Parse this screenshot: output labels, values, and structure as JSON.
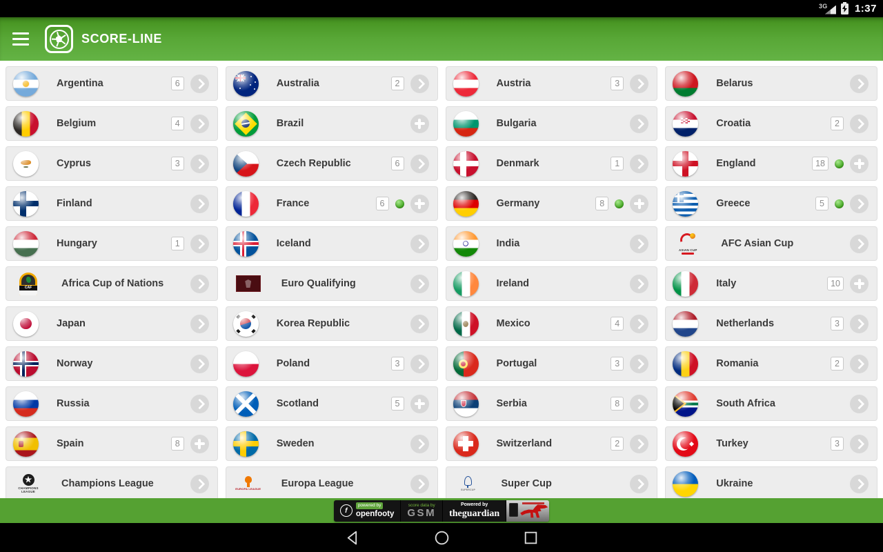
{
  "status_bar": {
    "time": "1:37",
    "network": "3G"
  },
  "header": {
    "title": "SCORE-LINE"
  },
  "colors": {
    "header_green": "#58A736",
    "ad_strip_green": "#55A132",
    "live_dot_green": "#3DA31C",
    "card_bg": "#EDEDED"
  },
  "ad_bar": {
    "openfooty_logo_letter": "f",
    "openfooty_label": "powered by",
    "openfooty_name": "openfooty",
    "gsm_label": "score data by",
    "gsm_name": "GSM",
    "guardian_label": "Powered by",
    "guardian_name": "theguardian"
  },
  "items": [
    {
      "name": "Argentina",
      "badge": "6",
      "action": "chevron",
      "flag": {
        "t": "h",
        "c": [
          "#75AADB",
          "#FFFFFF",
          "#75AADB"
        ],
        "fx": "sun"
      }
    },
    {
      "name": "Australia",
      "badge": "2",
      "action": "chevron",
      "flag": {
        "t": "aus"
      }
    },
    {
      "name": "Austria",
      "badge": "3",
      "action": "chevron",
      "flag": {
        "t": "h",
        "c": [
          "#ED2939",
          "#FFFFFF",
          "#ED2939"
        ]
      }
    },
    {
      "name": "Belarus",
      "action": "chevron",
      "flag": {
        "t": "h",
        "c": [
          "#CE1720",
          "#007C30"
        ],
        "p": [
          2,
          1
        ]
      }
    },
    {
      "name": "Belgium",
      "badge": "4",
      "action": "chevron",
      "flag": {
        "t": "v",
        "c": [
          "#2D2926",
          "#FFCD00",
          "#C8102E"
        ]
      }
    },
    {
      "name": "Brazil",
      "action": "plus",
      "flag": {
        "t": "brazil"
      }
    },
    {
      "name": "Bulgaria",
      "action": "chevron",
      "flag": {
        "t": "h",
        "c": [
          "#FFFFFF",
          "#00966E",
          "#D62612"
        ]
      }
    },
    {
      "name": "Croatia",
      "badge": "2",
      "action": "chevron",
      "flag": {
        "t": "h",
        "c": [
          "#C8102E",
          "#FFFFFF",
          "#012169"
        ],
        "fx": "check"
      }
    },
    {
      "name": "Cyprus",
      "badge": "3",
      "action": "chevron",
      "flag": {
        "t": "cyprus"
      }
    },
    {
      "name": "Czech Republic",
      "badge": "6",
      "action": "chevron",
      "flag": {
        "t": "czech"
      }
    },
    {
      "name": "Denmark",
      "badge": "1",
      "action": "chevron",
      "flag": {
        "t": "cross",
        "bg": "#C8102E",
        "cc": "#FFFFFF",
        "x": 40
      }
    },
    {
      "name": "England",
      "badge": "18",
      "live": true,
      "action": "plus",
      "flag": {
        "t": "cross",
        "bg": "#FFFFFF",
        "cc": "#CE1124",
        "x": 50
      }
    },
    {
      "name": "Finland",
      "action": "chevron",
      "flag": {
        "t": "cross",
        "bg": "#FFFFFF",
        "cc": "#002F6C",
        "x": 40
      }
    },
    {
      "name": "France",
      "badge": "6",
      "live": true,
      "action": "plus",
      "flag": {
        "t": "v",
        "c": [
          "#002395",
          "#FFFFFF",
          "#ED2939"
        ]
      }
    },
    {
      "name": "Germany",
      "badge": "8",
      "live": true,
      "action": "plus",
      "flag": {
        "t": "h",
        "c": [
          "#2D2926",
          "#DD0000",
          "#FFCE00"
        ]
      }
    },
    {
      "name": "Greece",
      "badge": "5",
      "live": true,
      "action": "chevron",
      "flag": {
        "t": "greece"
      }
    },
    {
      "name": "Hungary",
      "badge": "1",
      "action": "chevron",
      "flag": {
        "t": "h",
        "c": [
          "#CE2939",
          "#FFFFFF",
          "#477050"
        ]
      }
    },
    {
      "name": "Iceland",
      "action": "chevron",
      "flag": {
        "t": "cross2",
        "bg": "#02529C",
        "cc": "#FFFFFF",
        "ic": "#DC1E35",
        "x": 40
      }
    },
    {
      "name": "India",
      "action": "chevron",
      "flag": {
        "t": "h",
        "c": [
          "#FF9933",
          "#FFFFFF",
          "#138808"
        ],
        "fx": "chakra"
      }
    },
    {
      "name": "AFC Asian Cup",
      "action": "chevron",
      "flag": {
        "t": "logo",
        "k": "afc"
      },
      "logo_text": "ASIAN CUP"
    },
    {
      "name": "Africa Cup of Nations",
      "action": "chevron",
      "flag": {
        "t": "logo",
        "k": "caf"
      },
      "logo_text": "CAF"
    },
    {
      "name": "Euro Qualifying",
      "action": "chevron",
      "flag": {
        "t": "logo",
        "k": "euroq"
      }
    },
    {
      "name": "Ireland",
      "action": "chevron",
      "flag": {
        "t": "v",
        "c": [
          "#169B62",
          "#FFFFFF",
          "#FF883E"
        ]
      }
    },
    {
      "name": "Italy",
      "badge": "10",
      "action": "plus",
      "flag": {
        "t": "v",
        "c": [
          "#009246",
          "#FFFFFF",
          "#CE2B37"
        ]
      }
    },
    {
      "name": "Japan",
      "action": "chevron",
      "flag": {
        "t": "disc",
        "bg": "#FFFFFF",
        "dc": "#BC002D"
      }
    },
    {
      "name": "Korea Republic",
      "action": "chevron",
      "flag": {
        "t": "korea"
      }
    },
    {
      "name": "Mexico",
      "badge": "4",
      "action": "chevron",
      "flag": {
        "t": "v",
        "c": [
          "#006847",
          "#FFFFFF",
          "#CE1126"
        ],
        "fx": "emblem"
      }
    },
    {
      "name": "Netherlands",
      "badge": "3",
      "action": "chevron",
      "flag": {
        "t": "h",
        "c": [
          "#AE1C28",
          "#FFFFFF",
          "#21468B"
        ]
      }
    },
    {
      "name": "Norway",
      "action": "chevron",
      "flag": {
        "t": "cross2",
        "bg": "#BA0C2F",
        "cc": "#FFFFFF",
        "ic": "#00205B",
        "x": 40
      }
    },
    {
      "name": "Poland",
      "badge": "3",
      "action": "chevron",
      "flag": {
        "t": "h",
        "c": [
          "#FFFFFF",
          "#DC143C"
        ]
      }
    },
    {
      "name": "Portugal",
      "badge": "3",
      "action": "chevron",
      "flag": {
        "t": "v",
        "c": [
          "#046A38",
          "#DA291C"
        ],
        "p": [
          2,
          3
        ],
        "fx": "pt-emblem"
      }
    },
    {
      "name": "Romania",
      "badge": "2",
      "action": "chevron",
      "flag": {
        "t": "v",
        "c": [
          "#002B7F",
          "#FCD116",
          "#CE1126"
        ]
      }
    },
    {
      "name": "Russia",
      "action": "chevron",
      "flag": {
        "t": "h",
        "c": [
          "#FFFFFF",
          "#0039A6",
          "#D52B1E"
        ]
      }
    },
    {
      "name": "Scotland",
      "badge": "5",
      "action": "plus",
      "flag": {
        "t": "saltire",
        "bg": "#005EB8",
        "cc": "#FFFFFF"
      }
    },
    {
      "name": "Serbia",
      "badge": "8",
      "action": "chevron",
      "flag": {
        "t": "h",
        "c": [
          "#C6363C",
          "#0C4076",
          "#FFFFFF"
        ],
        "fx": "crest"
      }
    },
    {
      "name": "South Africa",
      "action": "chevron",
      "flag": {
        "t": "rsa"
      }
    },
    {
      "name": "Spain",
      "badge": "8",
      "action": "plus",
      "flag": {
        "t": "h",
        "c": [
          "#AA151B",
          "#F1BF00",
          "#AA151B"
        ],
        "p": [
          1,
          2,
          1
        ],
        "fx": "es-emblem"
      }
    },
    {
      "name": "Sweden",
      "action": "chevron",
      "flag": {
        "t": "cross",
        "bg": "#006AA7",
        "cc": "#FECC02",
        "x": 40
      }
    },
    {
      "name": "Switzerland",
      "badge": "2",
      "action": "chevron",
      "flag": {
        "t": "swiss"
      }
    },
    {
      "name": "Turkey",
      "badge": "3",
      "action": "chevron",
      "flag": {
        "t": "turkey"
      }
    },
    {
      "name": "Champions League",
      "action": "chevron",
      "flag": {
        "t": "logo",
        "k": "cl"
      },
      "logo_text": "CHAMPIONS LEAGUE"
    },
    {
      "name": "Europa League",
      "action": "chevron",
      "flag": {
        "t": "logo",
        "k": "el"
      },
      "logo_text": "EUROPA LEAGUE"
    },
    {
      "name": "Super Cup",
      "action": "chevron",
      "flag": {
        "t": "logo",
        "k": "sc"
      },
      "logo_text": "SUPERCUP"
    },
    {
      "name": "Ukraine",
      "action": "chevron",
      "flag": {
        "t": "h",
        "c": [
          "#005BBB",
          "#FFD500"
        ]
      }
    }
  ]
}
